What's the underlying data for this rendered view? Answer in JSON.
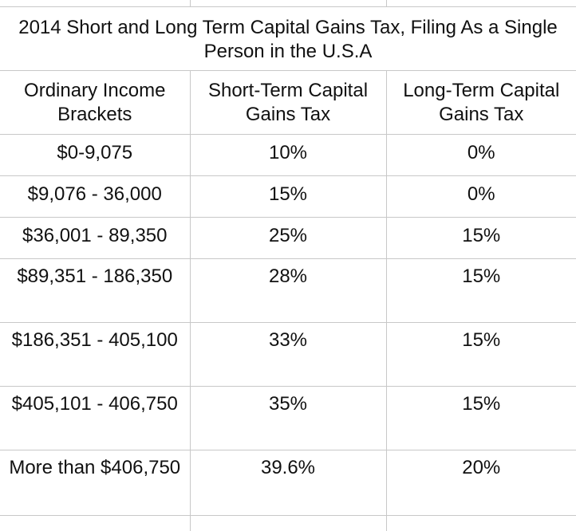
{
  "title": "2014 Short and Long Term Capital Gains Tax, Filing As a Single Person in the U.S.A",
  "headers": {
    "income": "Ordinary Income Brackets",
    "short_term": "Short-Term Capital Gains Tax",
    "long_term": "Long-Term Capital Gains Tax"
  },
  "rows": [
    {
      "bracket": "$0-9,075",
      "short_term": "10%",
      "long_term": "0%"
    },
    {
      "bracket": "$9,076 - 36,000",
      "short_term": "15%",
      "long_term": "0%"
    },
    {
      "bracket": "$36,001 - 89,350",
      "short_term": "25%",
      "long_term": "15%"
    },
    {
      "bracket": "$89,351 - 186,350",
      "short_term": "28%",
      "long_term": "15%"
    },
    {
      "bracket": "$186,351 - 405,100",
      "short_term": "33%",
      "long_term": "15%"
    },
    {
      "bracket": "$405,101 - 406,750",
      "short_term": "35%",
      "long_term": "15%"
    },
    {
      "bracket": "More than $406,750",
      "short_term": "39.6%",
      "long_term": "20%"
    }
  ]
}
